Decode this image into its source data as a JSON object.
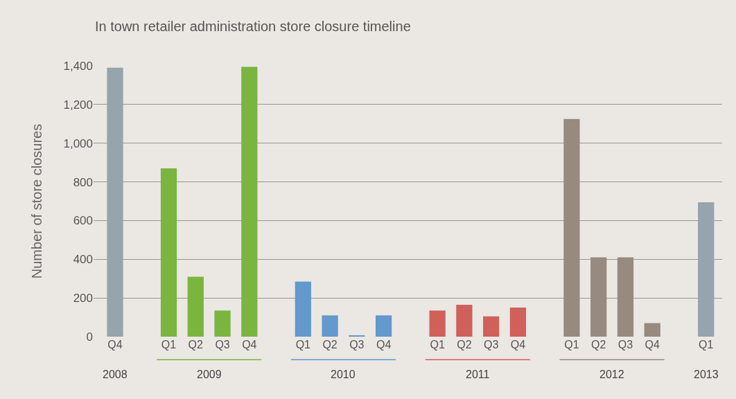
{
  "chart_data": {
    "type": "bar",
    "title": "In town retailer administration store closure timeline",
    "ylabel": "Number of store closures",
    "categories": [
      "Q4",
      null,
      "Q1",
      "Q2",
      "Q3",
      "Q4",
      null,
      "Q1",
      "Q2",
      "Q3",
      "Q4",
      null,
      "Q1",
      "Q2",
      "Q3",
      "Q4",
      null,
      "Q1",
      "Q2",
      "Q3",
      "Q4",
      null,
      "Q1"
    ],
    "series": [
      {
        "name": "2008",
        "color": "#95a4ad",
        "values": [
          1390,
          null,
          null,
          null,
          null,
          null,
          null,
          null,
          null,
          null,
          null,
          null,
          null,
          null,
          null,
          null,
          null,
          null,
          null,
          null,
          null,
          null,
          null
        ]
      },
      {
        "name": "2009",
        "color": "#7ab540",
        "values": [
          null,
          null,
          870,
          310,
          135,
          1395,
          null,
          null,
          null,
          null,
          null,
          null,
          null,
          null,
          null,
          null,
          null,
          null,
          null,
          null,
          null,
          null,
          null
        ]
      },
      {
        "name": "2010",
        "color": "#6399cc",
        "values": [
          null,
          null,
          null,
          null,
          null,
          null,
          null,
          285,
          110,
          7,
          110,
          null,
          null,
          null,
          null,
          null,
          null,
          null,
          null,
          null,
          null,
          null,
          null
        ]
      },
      {
        "name": "2011",
        "color": "#d0605a",
        "values": [
          null,
          null,
          null,
          null,
          null,
          null,
          null,
          null,
          null,
          null,
          null,
          null,
          135,
          165,
          105,
          150,
          null,
          null,
          null,
          null,
          null,
          null,
          null
        ]
      },
      {
        "name": "2012",
        "color": "#978a7e",
        "values": [
          null,
          null,
          null,
          null,
          null,
          null,
          null,
          null,
          null,
          null,
          null,
          null,
          null,
          null,
          null,
          null,
          null,
          1125,
          410,
          410,
          70,
          null,
          null
        ]
      },
      {
        "name": "2013",
        "color": "#95a4ad",
        "values": [
          null,
          null,
          null,
          null,
          null,
          null,
          null,
          null,
          null,
          null,
          null,
          null,
          null,
          null,
          null,
          null,
          null,
          null,
          null,
          null,
          null,
          null,
          695
        ]
      }
    ],
    "ylim": [
      0,
      1400
    ],
    "yticks": [
      0,
      200,
      400,
      600,
      800,
      {
        "value": 1000,
        "label": "1,000"
      },
      {
        "value": 1200,
        "label": "1,200"
      },
      {
        "value": 1400,
        "label": "1,400"
      }
    ],
    "grid": "y",
    "legend": false
  }
}
